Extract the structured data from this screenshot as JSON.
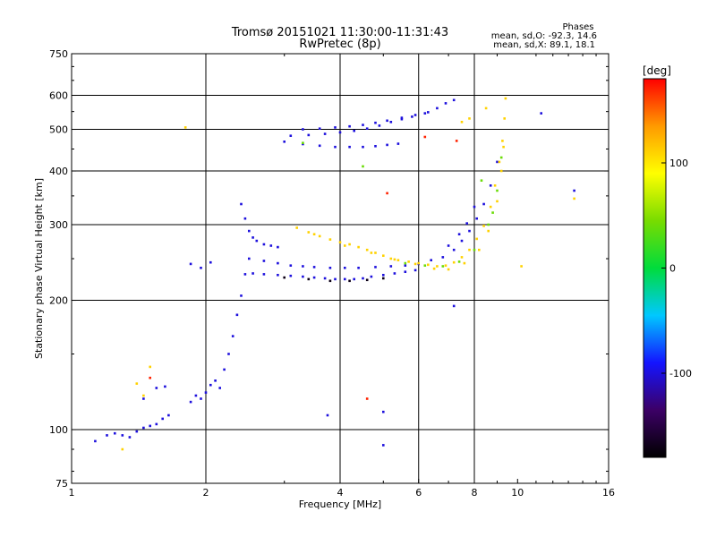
{
  "header": {
    "title": "Tromsø 20151021 11:30:00-11:31:43",
    "subtitle": "RwPretec (8p)"
  },
  "phase_info": {
    "heading": "Phases",
    "line_o": "mean, sd,O: -92.3, 14.6",
    "line_x": "mean, sd,X:  89.1, 18.1"
  },
  "chart_data": {
    "type": "scatter",
    "xlabel": "Frequency [MHz]",
    "ylabel": "Stationary phase Virtual Height [km]",
    "x_scale": "log",
    "y_scale": "log",
    "xlim": [
      1,
      16
    ],
    "ylim": [
      75,
      750
    ],
    "x_ticks": [
      1,
      2,
      4,
      6,
      8,
      10,
      16
    ],
    "y_ticks": [
      75,
      100,
      200,
      300,
      400,
      500,
      600,
      750
    ],
    "x_grid": [
      2,
      4,
      6,
      8
    ],
    "y_grid": [
      100,
      200,
      300,
      400,
      500,
      600
    ],
    "grid": true,
    "colorbar": {
      "label": "[deg]",
      "ticks": [
        100,
        0,
        -100
      ],
      "range": [
        -180,
        180
      ],
      "colors": [
        "#000000",
        "#3c0066",
        "#1414ff",
        "#00c8ff",
        "#00dc3c",
        "#78dc00",
        "#ffff00",
        "#ff9a00",
        "#ff0000"
      ]
    },
    "series": [
      {
        "phase": -100,
        "points": [
          [
            1.13,
            94
          ],
          [
            1.2,
            97
          ],
          [
            1.25,
            98
          ],
          [
            1.3,
            97
          ],
          [
            1.35,
            96
          ],
          [
            1.4,
            99
          ],
          [
            1.45,
            101
          ],
          [
            1.5,
            102
          ],
          [
            1.55,
            103
          ],
          [
            1.6,
            106
          ],
          [
            1.65,
            108
          ],
          [
            1.55,
            125
          ],
          [
            1.62,
            126
          ],
          [
            1.45,
            118
          ],
          [
            1.85,
            116
          ],
          [
            1.9,
            120
          ],
          [
            1.95,
            118
          ],
          [
            2.0,
            122
          ],
          [
            2.05,
            127
          ],
          [
            2.1,
            130
          ],
          [
            2.15,
            125
          ],
          [
            2.2,
            138
          ],
          [
            2.25,
            150
          ],
          [
            2.3,
            165
          ],
          [
            2.35,
            185
          ],
          [
            2.4,
            205
          ],
          [
            1.85,
            243
          ],
          [
            1.95,
            238
          ],
          [
            2.05,
            245
          ],
          [
            2.45,
            230
          ],
          [
            2.55,
            231
          ],
          [
            2.7,
            230
          ],
          [
            2.9,
            229
          ],
          [
            3.1,
            228
          ],
          [
            3.3,
            227
          ],
          [
            3.5,
            226
          ],
          [
            3.7,
            225
          ],
          [
            3.9,
            224
          ],
          [
            4.1,
            224
          ],
          [
            4.3,
            224
          ],
          [
            4.5,
            225
          ],
          [
            4.7,
            227
          ],
          [
            5.0,
            229
          ],
          [
            5.3,
            231
          ],
          [
            5.6,
            233
          ],
          [
            5.9,
            235
          ],
          [
            2.5,
            250
          ],
          [
            2.7,
            247
          ],
          [
            2.9,
            244
          ],
          [
            3.1,
            241
          ],
          [
            3.3,
            240
          ],
          [
            3.5,
            239
          ],
          [
            3.8,
            238
          ],
          [
            4.1,
            238
          ],
          [
            4.4,
            238
          ],
          [
            4.8,
            239
          ],
          [
            5.2,
            240
          ],
          [
            5.6,
            241
          ],
          [
            6.0,
            243
          ],
          [
            2.4,
            335
          ],
          [
            2.45,
            310
          ],
          [
            2.5,
            290
          ],
          [
            2.55,
            280
          ],
          [
            2.6,
            275
          ],
          [
            2.7,
            270
          ],
          [
            2.8,
            268
          ],
          [
            2.9,
            266
          ],
          [
            6.4,
            248
          ],
          [
            6.8,
            252
          ],
          [
            7.2,
            262
          ],
          [
            7.5,
            275
          ],
          [
            7.8,
            290
          ],
          [
            8.1,
            310
          ],
          [
            8.4,
            335
          ],
          [
            8.7,
            370
          ],
          [
            9.0,
            420
          ],
          [
            7.0,
            268
          ],
          [
            7.4,
            285
          ],
          [
            7.7,
            302
          ],
          [
            8.0,
            330
          ],
          [
            3.0,
            468
          ],
          [
            3.3,
            462
          ],
          [
            3.6,
            458
          ],
          [
            3.9,
            455
          ],
          [
            4.2,
            455
          ],
          [
            4.5,
            455
          ],
          [
            4.8,
            457
          ],
          [
            5.1,
            460
          ],
          [
            5.4,
            463
          ],
          [
            3.1,
            483
          ],
          [
            3.4,
            485
          ],
          [
            3.7,
            488
          ],
          [
            4.0,
            492
          ],
          [
            4.3,
            496
          ],
          [
            4.6,
            502
          ],
          [
            4.9,
            510
          ],
          [
            5.2,
            520
          ],
          [
            5.5,
            528
          ],
          [
            5.8,
            535
          ],
          [
            3.3,
            500
          ],
          [
            3.6,
            502
          ],
          [
            3.9,
            505
          ],
          [
            4.2,
            508
          ],
          [
            4.5,
            512
          ],
          [
            4.8,
            518
          ],
          [
            5.1,
            524
          ],
          [
            5.5,
            532
          ],
          [
            5.9,
            540
          ],
          [
            6.2,
            545
          ],
          [
            6.3,
            548
          ],
          [
            6.6,
            560
          ],
          [
            6.9,
            575
          ],
          [
            7.2,
            585
          ],
          [
            11.3,
            545
          ],
          [
            13.4,
            360
          ],
          [
            3.75,
            108
          ],
          [
            5.0,
            110
          ],
          [
            5.0,
            92
          ],
          [
            7.2,
            194
          ]
        ]
      },
      {
        "phase": 110,
        "points": [
          [
            3.2,
            295
          ],
          [
            3.4,
            288
          ],
          [
            3.6,
            282
          ],
          [
            3.8,
            277
          ],
          [
            4.0,
            273
          ],
          [
            4.2,
            270
          ],
          [
            4.4,
            266
          ],
          [
            4.6,
            262
          ],
          [
            4.8,
            258
          ],
          [
            5.0,
            254
          ],
          [
            5.2,
            250
          ],
          [
            5.4,
            248
          ],
          [
            5.7,
            246
          ],
          [
            6.0,
            244
          ],
          [
            6.3,
            242
          ],
          [
            6.6,
            240
          ],
          [
            6.9,
            241
          ],
          [
            7.2,
            245
          ],
          [
            7.5,
            252
          ],
          [
            7.8,
            262
          ],
          [
            8.1,
            278
          ],
          [
            8.4,
            298
          ],
          [
            8.7,
            330
          ],
          [
            8.9,
            370
          ],
          [
            9.1,
            420
          ],
          [
            9.25,
            470
          ],
          [
            9.35,
            530
          ],
          [
            9.4,
            590
          ],
          [
            3.5,
            285
          ],
          [
            4.1,
            268
          ],
          [
            4.7,
            258
          ],
          [
            5.3,
            249
          ],
          [
            5.9,
            243
          ],
          [
            6.5,
            237
          ],
          [
            7.0,
            236
          ],
          [
            7.6,
            244
          ],
          [
            8.2,
            262
          ],
          [
            8.6,
            290
          ],
          [
            9.0,
            340
          ],
          [
            9.2,
            400
          ],
          [
            9.3,
            455
          ],
          [
            1.3,
            90
          ],
          [
            1.4,
            128
          ],
          [
            1.5,
            140
          ],
          [
            1.45,
            120
          ],
          [
            1.8,
            505
          ],
          [
            7.5,
            520
          ],
          [
            7.8,
            530
          ],
          [
            8.5,
            560
          ],
          [
            13.4,
            345
          ],
          [
            10.2,
            240
          ]
        ]
      },
      {
        "phase": 40,
        "points": [
          [
            5.6,
            244
          ],
          [
            6.2,
            241
          ],
          [
            6.8,
            240
          ],
          [
            7.4,
            246
          ],
          [
            8.0,
            262
          ],
          [
            8.6,
            300
          ],
          [
            9.0,
            360
          ],
          [
            9.2,
            430
          ],
          [
            3.3,
            465
          ],
          [
            4.5,
            410
          ],
          [
            8.3,
            380
          ],
          [
            8.8,
            320
          ]
        ]
      },
      {
        "phase": 170,
        "points": [
          [
            5.1,
            355
          ],
          [
            4.6,
            118
          ],
          [
            1.5,
            132
          ],
          [
            6.2,
            480
          ],
          [
            7.3,
            470
          ]
        ]
      },
      {
        "phase": -170,
        "points": [
          [
            3.0,
            226
          ],
          [
            3.4,
            224
          ],
          [
            3.8,
            222
          ],
          [
            4.2,
            222
          ],
          [
            4.6,
            223
          ],
          [
            5.0,
            225
          ]
        ]
      }
    ]
  }
}
